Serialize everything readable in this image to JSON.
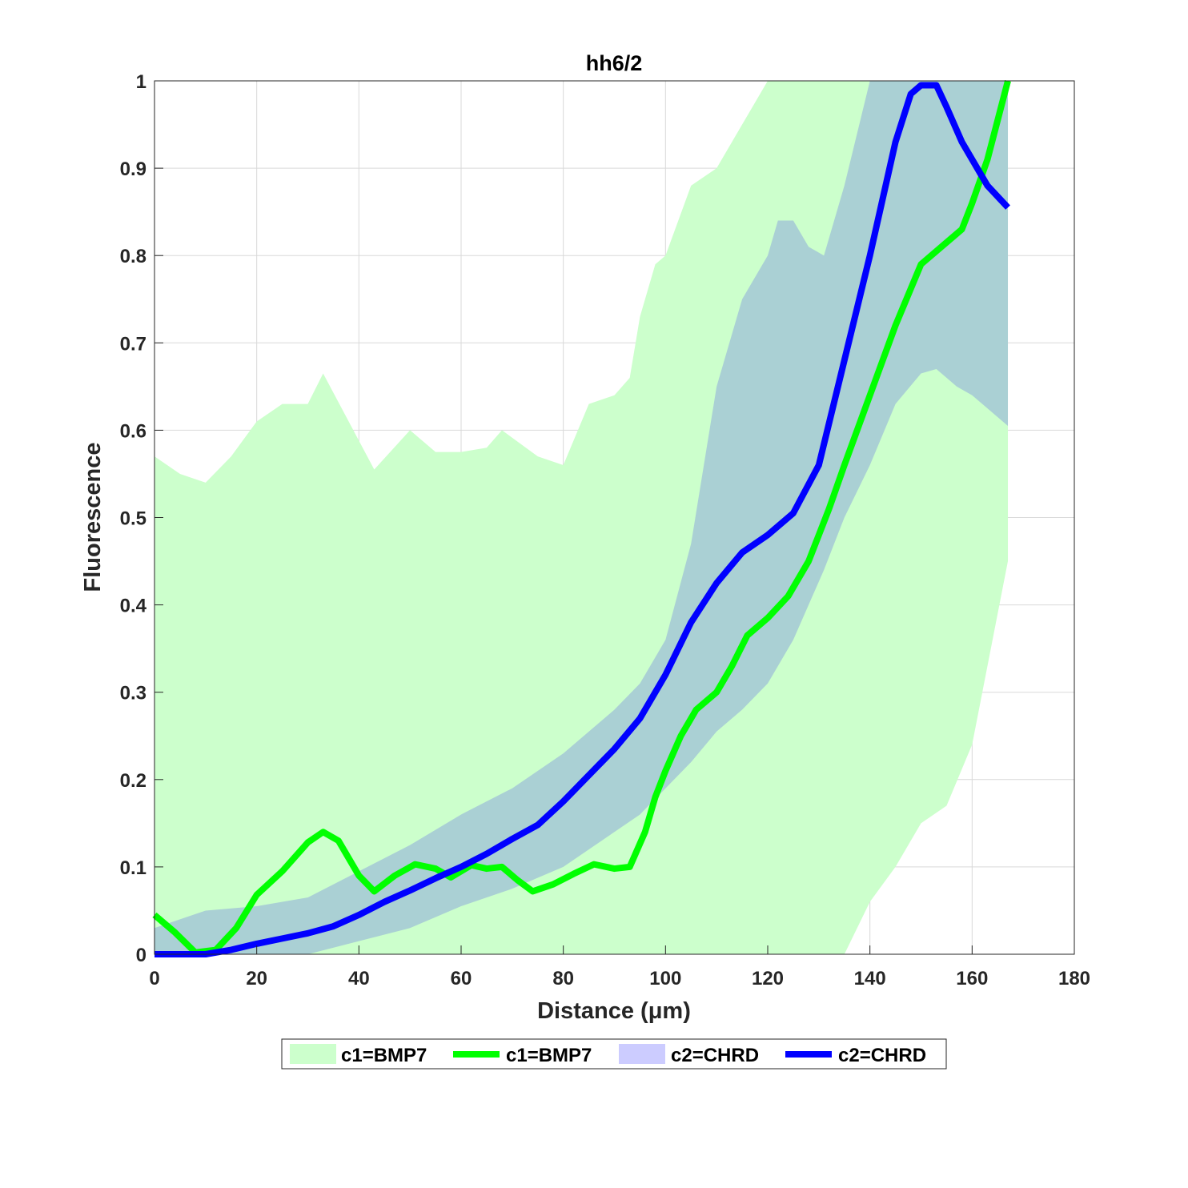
{
  "chart_data": {
    "type": "line",
    "title": "hh6/2",
    "xlabel": "Distance  (μm)",
    "ylabel": "Fluorescence",
    "xlim": [
      0,
      180
    ],
    "ylim": [
      0,
      1
    ],
    "xticks": [
      0,
      20,
      40,
      60,
      80,
      100,
      120,
      140,
      160,
      180
    ],
    "yticks": [
      0,
      0.1,
      0.2,
      0.3,
      0.4,
      0.5,
      0.6,
      0.7,
      0.8,
      0.9,
      1
    ],
    "xtick_labels": [
      "0",
      "20",
      "40",
      "60",
      "80",
      "100",
      "120",
      "140",
      "160",
      "180"
    ],
    "ytick_labels": [
      "0",
      "0.1",
      "0.2",
      "0.3",
      "0.4",
      "0.5",
      "0.6",
      "0.7",
      "0.8",
      "0.9",
      "1"
    ],
    "grid": true,
    "legend_position": "bottom-outside",
    "legend": [
      "c1=BMP7",
      "c1=BMP7",
      "c2=CHRD",
      "c2=CHRD"
    ],
    "colors": {
      "bmp7_band": "#ccffcc",
      "bmp7_line": "#00ff00",
      "chrd_band_legend": "#ccccff",
      "chrd_band_overlap": "#a6cbd5",
      "chrd_line": "#0000ff"
    },
    "series": [
      {
        "name": "c1=BMP7",
        "kind": "band",
        "x": [
          0,
          5,
          10,
          15,
          20,
          25,
          30,
          33,
          38,
          43,
          50,
          55,
          60,
          65,
          68,
          75,
          80,
          85,
          90,
          93,
          95,
          98,
          100,
          105,
          110,
          115,
          120,
          125,
          130,
          135,
          140,
          145,
          150,
          155,
          160,
          167
        ],
        "upper": [
          0.57,
          0.55,
          0.54,
          0.57,
          0.61,
          0.63,
          0.63,
          0.665,
          0.61,
          0.555,
          0.6,
          0.575,
          0.575,
          0.58,
          0.6,
          0.57,
          0.56,
          0.63,
          0.64,
          0.66,
          0.73,
          0.79,
          0.8,
          0.88,
          0.9,
          0.95,
          1.0,
          1.0,
          1.0,
          1.0,
          1.0,
          1.0,
          1.0,
          1.0,
          1.0,
          1.0
        ],
        "lower": [
          0,
          0,
          0,
          0,
          0,
          0,
          0,
          0,
          0,
          0,
          0,
          0,
          0,
          0,
          0,
          0,
          0,
          0,
          0,
          0,
          0,
          0,
          0,
          0,
          0,
          0,
          0,
          0,
          0,
          0,
          0.06,
          0.1,
          0.15,
          0.17,
          0.24,
          0.45
        ]
      },
      {
        "name": "c1=BMP7",
        "kind": "line",
        "x": [
          0,
          4,
          8,
          12,
          16,
          20,
          25,
          30,
          33,
          36,
          40,
          43,
          47,
          51,
          55,
          58,
          62,
          65,
          68,
          71,
          74,
          78,
          82,
          86,
          90,
          93,
          96,
          98,
          100,
          103,
          106,
          110,
          113,
          116,
          120,
          124,
          128,
          132,
          135,
          140,
          145,
          150,
          155,
          158,
          160,
          163,
          167
        ],
        "y": [
          0.045,
          0.025,
          0.002,
          0.005,
          0.03,
          0.068,
          0.095,
          0.128,
          0.14,
          0.13,
          0.09,
          0.072,
          0.09,
          0.103,
          0.098,
          0.088,
          0.102,
          0.098,
          0.1,
          0.085,
          0.072,
          0.08,
          0.092,
          0.103,
          0.098,
          0.1,
          0.14,
          0.18,
          0.21,
          0.25,
          0.28,
          0.3,
          0.33,
          0.365,
          0.385,
          0.41,
          0.45,
          0.51,
          0.56,
          0.64,
          0.72,
          0.79,
          0.815,
          0.83,
          0.86,
          0.91,
          1.0
        ]
      },
      {
        "name": "c2=CHRD",
        "kind": "band",
        "x": [
          0,
          10,
          20,
          30,
          40,
          50,
          60,
          70,
          80,
          90,
          95,
          100,
          105,
          110,
          115,
          120,
          122,
          125,
          128,
          131,
          135,
          140,
          145,
          150,
          153,
          157,
          160,
          167
        ],
        "upper": [
          0.03,
          0.05,
          0.055,
          0.065,
          0.095,
          0.125,
          0.16,
          0.19,
          0.23,
          0.28,
          0.31,
          0.36,
          0.47,
          0.65,
          0.75,
          0.8,
          0.84,
          0.84,
          0.81,
          0.8,
          0.88,
          1.0,
          1.0,
          1.0,
          1.0,
          1.0,
          1.0,
          1.0
        ],
        "lower": [
          0,
          0,
          0,
          0.0,
          0.015,
          0.03,
          0.055,
          0.075,
          0.1,
          0.14,
          0.16,
          0.19,
          0.22,
          0.255,
          0.28,
          0.31,
          0.33,
          0.36,
          0.4,
          0.44,
          0.5,
          0.56,
          0.63,
          0.665,
          0.67,
          0.65,
          0.64,
          0.605
        ]
      },
      {
        "name": "c2=CHRD",
        "kind": "line",
        "x": [
          0,
          5,
          10,
          15,
          20,
          25,
          30,
          35,
          40,
          45,
          50,
          55,
          60,
          65,
          70,
          75,
          80,
          85,
          90,
          95,
          100,
          105,
          110,
          115,
          120,
          125,
          130,
          135,
          140,
          145,
          148,
          150,
          153,
          155,
          158,
          160,
          163,
          167
        ],
        "y": [
          0,
          0,
          0,
          0.005,
          0.012,
          0.018,
          0.024,
          0.032,
          0.045,
          0.06,
          0.073,
          0.087,
          0.1,
          0.115,
          0.132,
          0.148,
          0.175,
          0.205,
          0.235,
          0.27,
          0.32,
          0.38,
          0.425,
          0.46,
          0.48,
          0.505,
          0.56,
          0.68,
          0.8,
          0.93,
          0.985,
          0.995,
          0.995,
          0.97,
          0.93,
          0.91,
          0.88,
          0.855
        ]
      }
    ]
  }
}
